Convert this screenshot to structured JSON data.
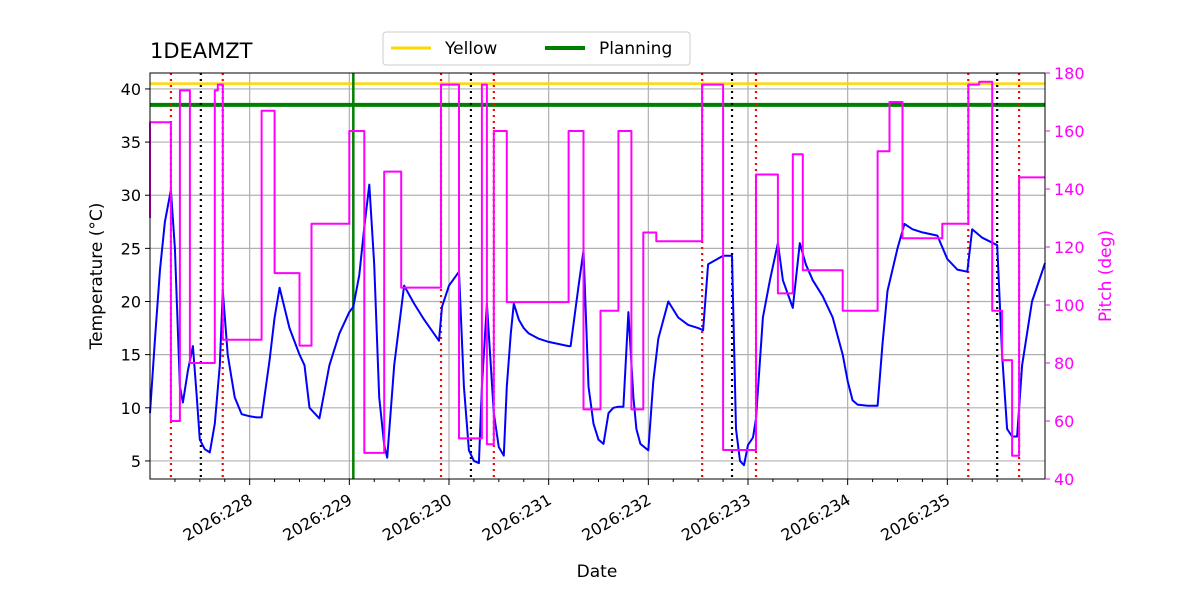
{
  "chart_data": {
    "type": "line",
    "title": "1DEAMZT",
    "xlabel": "Date",
    "ylabel": "Temperature ($^\\circ$C)",
    "ylabel_display": "Temperature (°C)",
    "y2label": "Pitch (deg)",
    "xlim": [
      227.0,
      235.98
    ],
    "ylim": [
      3.3,
      41.5
    ],
    "y2lim": [
      40,
      180
    ],
    "x_tick_labels": [
      "2026:228",
      "2026:229",
      "2026:230",
      "2026:231",
      "2026:232",
      "2026:233",
      "2026:234",
      "2026:235"
    ],
    "x_ticks": [
      228,
      229,
      230,
      231,
      232,
      233,
      234,
      235
    ],
    "y_ticks": [
      5,
      10,
      15,
      20,
      25,
      30,
      35,
      40
    ],
    "y2_ticks": [
      40,
      60,
      80,
      100,
      120,
      140,
      160,
      180
    ],
    "grid": true,
    "legend": {
      "placement": "top-center",
      "entries": [
        {
          "name": "Yellow",
          "color": "#ffd700"
        },
        {
          "name": "Planning",
          "color": "#008000"
        }
      ]
    },
    "limits": {
      "yellow": 40.5,
      "planning": 38.5
    },
    "colors": {
      "temperature": "#0000ff",
      "pitch": "#ff00ff",
      "yellow": "#ffd700",
      "planning": "#008000",
      "red_marker": "#ff0000",
      "black_marker": "#000000",
      "now_line": "#008000",
      "grid": "#b0b0b0"
    },
    "now_line_x": 229.04,
    "red_markers": [
      227.21,
      227.73,
      229.92,
      230.45,
      232.54,
      233.08,
      235.21,
      235.72
    ],
    "black_markers": [
      227.51,
      230.22,
      232.84,
      235.5
    ],
    "series": [
      {
        "name": "Temperature",
        "axis": "left",
        "x": [
          227.0,
          227.05,
          227.1,
          227.15,
          227.21,
          227.25,
          227.3,
          227.33,
          227.38,
          227.43,
          227.47,
          227.5,
          227.55,
          227.6,
          227.65,
          227.7,
          227.73,
          227.78,
          227.85,
          227.92,
          228.0,
          228.07,
          228.12,
          228.2,
          228.25,
          228.3,
          228.4,
          228.5,
          228.55,
          228.6,
          228.7,
          228.8,
          228.9,
          229.0,
          229.04,
          229.1,
          229.15,
          229.2,
          229.25,
          229.3,
          229.35,
          229.38,
          229.45,
          229.55,
          229.65,
          229.75,
          229.9,
          229.93,
          230.0,
          230.1,
          230.15,
          230.2,
          230.25,
          230.3,
          230.33,
          230.38,
          230.45,
          230.5,
          230.55,
          230.58,
          230.62,
          230.65,
          230.7,
          230.75,
          230.8,
          230.9,
          231.0,
          231.1,
          231.2,
          231.22,
          231.3,
          231.35,
          231.4,
          231.45,
          231.5,
          231.55,
          231.6,
          231.65,
          231.7,
          231.75,
          231.8,
          231.85,
          231.88,
          231.92,
          232.0,
          232.05,
          232.1,
          232.2,
          232.3,
          232.4,
          232.5,
          232.55,
          232.6,
          232.75,
          232.84,
          232.88,
          232.92,
          232.96,
          233.0,
          233.05,
          233.08,
          233.15,
          233.22,
          233.3,
          233.35,
          233.45,
          233.52,
          233.58,
          233.65,
          233.75,
          233.85,
          233.95,
          234.0,
          234.05,
          234.1,
          234.2,
          234.3,
          234.35,
          234.4,
          234.5,
          234.57,
          234.65,
          234.75,
          234.9,
          235.0,
          235.1,
          235.2,
          235.25,
          235.35,
          235.5,
          235.55,
          235.6,
          235.65,
          235.7,
          235.75,
          235.85,
          235.98
        ],
        "y": [
          9.5,
          16.5,
          23.0,
          27.5,
          30.5,
          25.0,
          12.0,
          10.5,
          13.5,
          15.8,
          11.0,
          7.0,
          6.1,
          5.8,
          8.5,
          14.0,
          21.0,
          15.0,
          11.0,
          9.4,
          9.2,
          9.1,
          9.1,
          14.5,
          18.5,
          21.3,
          17.5,
          15.0,
          14.0,
          10.0,
          9.0,
          14.0,
          17.0,
          19.0,
          19.5,
          22.5,
          27.0,
          31.0,
          23.5,
          11.0,
          6.5,
          5.3,
          14.0,
          21.5,
          19.8,
          18.3,
          16.3,
          19.5,
          21.5,
          22.8,
          12.0,
          6.0,
          5.0,
          4.8,
          12.0,
          19.8,
          9.5,
          6.3,
          5.5,
          12.0,
          17.0,
          19.8,
          18.3,
          17.5,
          17.0,
          16.5,
          16.2,
          16.0,
          15.8,
          15.8,
          21.5,
          24.8,
          12.0,
          8.5,
          7.0,
          6.6,
          9.5,
          10.0,
          10.1,
          10.1,
          19.0,
          11.0,
          8.0,
          6.6,
          6.0,
          12.5,
          16.5,
          20.0,
          18.5,
          17.8,
          17.5,
          17.3,
          23.5,
          24.3,
          24.3,
          8.0,
          5.0,
          4.6,
          6.5,
          7.2,
          9.0,
          18.5,
          22.0,
          25.5,
          22.0,
          19.4,
          25.5,
          23.5,
          22.0,
          20.5,
          18.5,
          15.0,
          12.5,
          10.7,
          10.3,
          10.2,
          10.2,
          16.0,
          21.0,
          25.0,
          27.3,
          26.8,
          26.5,
          26.2,
          24.0,
          23.0,
          22.8,
          26.8,
          26.0,
          25.3,
          15.0,
          8.0,
          7.3,
          7.3,
          14.0,
          20.0,
          23.6
        ]
      },
      {
        "name": "Pitch",
        "axis": "right",
        "x": [
          227.0,
          227.0,
          227.21,
          227.21,
          227.3,
          227.3,
          227.4,
          227.4,
          227.65,
          227.65,
          227.68,
          227.68,
          227.73,
          227.73,
          228.12,
          228.12,
          228.25,
          228.25,
          228.5,
          228.5,
          228.62,
          228.62,
          228.7,
          228.7,
          229.0,
          229.0,
          229.15,
          229.15,
          229.35,
          229.35,
          229.52,
          229.52,
          229.92,
          229.92,
          230.1,
          230.1,
          230.33,
          230.33,
          230.38,
          230.38,
          230.45,
          230.45,
          230.58,
          230.58,
          230.68,
          230.68,
          231.2,
          231.2,
          231.35,
          231.35,
          231.52,
          231.52,
          231.7,
          231.7,
          231.83,
          231.83,
          231.95,
          231.95,
          232.08,
          232.08,
          232.54,
          232.54,
          232.75,
          232.75,
          233.08,
          233.08,
          233.3,
          233.3,
          233.45,
          233.45,
          233.55,
          233.55,
          233.62,
          233.62,
          233.95,
          233.95,
          234.3,
          234.3,
          234.42,
          234.42,
          234.55,
          234.55,
          234.95,
          234.95,
          235.21,
          235.21,
          235.32,
          235.32,
          235.45,
          235.45,
          235.55,
          235.55,
          235.65,
          235.65,
          235.72,
          235.72,
          235.98
        ],
        "y": [
          130,
          163,
          163,
          60,
          60,
          174,
          174,
          80,
          80,
          174,
          174,
          176,
          176,
          88,
          88,
          167,
          167,
          111,
          111,
          86,
          86,
          128,
          128,
          128,
          128,
          160,
          160,
          49,
          49,
          146,
          146,
          106,
          106,
          176,
          176,
          54,
          54,
          176,
          176,
          52,
          52,
          160,
          160,
          101,
          101,
          101,
          101,
          160,
          160,
          64,
          64,
          98,
          98,
          160,
          160,
          64,
          64,
          125,
          125,
          122,
          122,
          176,
          176,
          50,
          50,
          145,
          145,
          104,
          104,
          152,
          152,
          112,
          112,
          112,
          112,
          98,
          98,
          153,
          153,
          170,
          170,
          123,
          123,
          128,
          128,
          176,
          176,
          177,
          177,
          98,
          98,
          81,
          81,
          48,
          48,
          144,
          144
        ]
      }
    ]
  }
}
